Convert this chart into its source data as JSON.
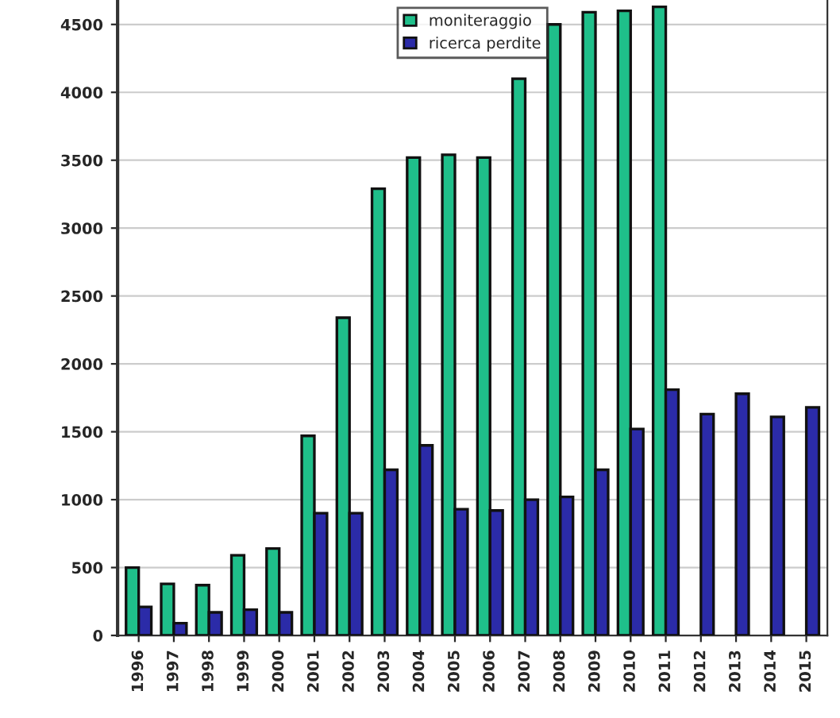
{
  "chart_data": {
    "type": "bar",
    "categories": [
      "1996",
      "1997",
      "1998",
      "1999",
      "2000",
      "2001",
      "2002",
      "2003",
      "2004",
      "2005",
      "2006",
      "2007",
      "2008",
      "2009",
      "2010",
      "2011",
      "2012",
      "2013",
      "2014",
      "2015"
    ],
    "series": [
      {
        "name": "moniteraggio",
        "color": "#1fbf8a",
        "values": [
          500,
          380,
          370,
          590,
          640,
          1470,
          2340,
          3290,
          3520,
          3540,
          3520,
          4100,
          4500,
          4590,
          4600,
          4630,
          null,
          null,
          null,
          null
        ]
      },
      {
        "name": "ricerca perdite",
        "color": "#2b2ba8",
        "values": [
          210,
          90,
          170,
          190,
          170,
          900,
          900,
          1220,
          1400,
          930,
          920,
          1000,
          1020,
          1220,
          1520,
          1810,
          1630,
          1780,
          1610,
          1680
        ]
      }
    ],
    "ylim": [
      0,
      4680
    ],
    "yticks": [
      0,
      500,
      1000,
      1500,
      2000,
      2500,
      3000,
      3500,
      4000,
      4500
    ],
    "grid": "y",
    "legend": "top"
  }
}
